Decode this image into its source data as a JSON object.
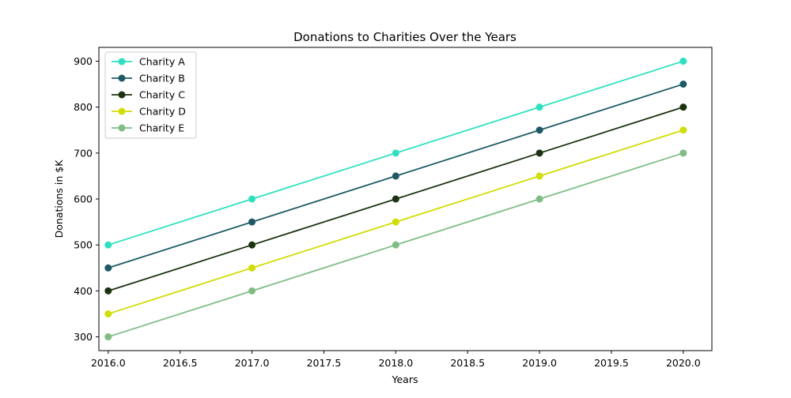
{
  "chart_data": {
    "type": "line",
    "title": "Donations to Charities Over the Years",
    "xlabel": "Years",
    "ylabel": "Donations in $K",
    "x": [
      2016,
      2017,
      2018,
      2019,
      2020
    ],
    "xlim": [
      2015.935,
      2020.199
    ],
    "ylim": [
      270,
      930
    ],
    "xticks": [
      "2016.0",
      "2016.5",
      "2017.0",
      "2017.5",
      "2018.0",
      "2018.5",
      "2019.0",
      "2019.5",
      "2020.0"
    ],
    "xtick_values": [
      2016.0,
      2016.5,
      2017.0,
      2017.5,
      2018.0,
      2018.5,
      2019.0,
      2019.5,
      2020.0
    ],
    "yticks": [
      "300",
      "400",
      "500",
      "600",
      "700",
      "800",
      "900"
    ],
    "ytick_values": [
      300,
      400,
      500,
      600,
      700,
      800,
      900
    ],
    "grid": false,
    "legend_position": "upper-left",
    "series": [
      {
        "name": "Charity A",
        "color": "#2ee0c0",
        "values": [
          500,
          600,
          700,
          800,
          900
        ]
      },
      {
        "name": "Charity B",
        "color": "#1e5a66",
        "values": [
          450,
          550,
          650,
          750,
          850
        ]
      },
      {
        "name": "Charity C",
        "color": "#1c3310",
        "values": [
          400,
          500,
          600,
          700,
          800
        ]
      },
      {
        "name": "Charity D",
        "color": "#d2dc05",
        "values": [
          350,
          450,
          550,
          650,
          750
        ]
      },
      {
        "name": "Charity E",
        "color": "#7fbd85",
        "values": [
          300,
          400,
          500,
          600,
          700
        ]
      }
    ]
  }
}
